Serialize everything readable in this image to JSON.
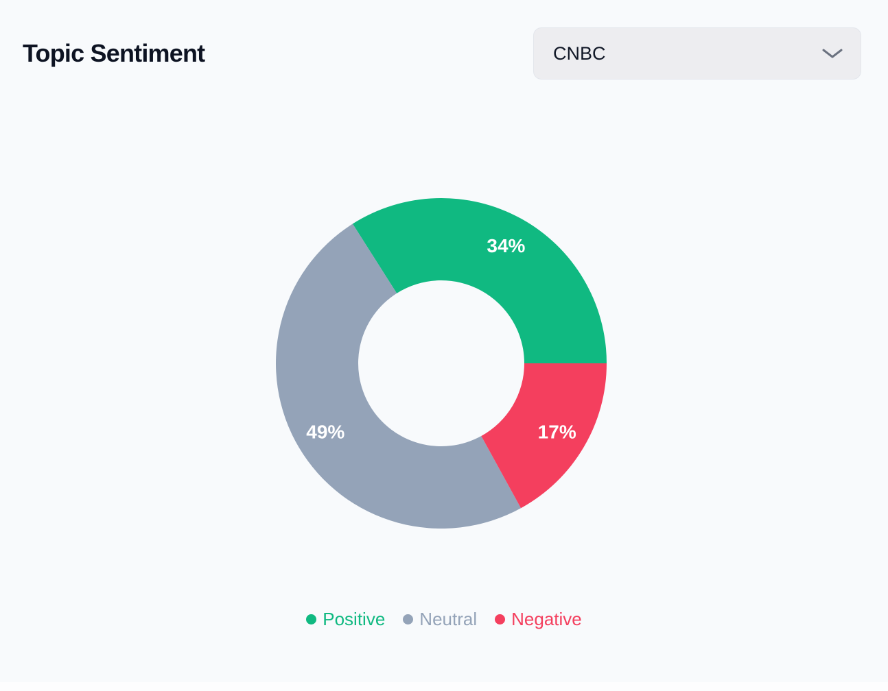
{
  "header": {
    "title": "Topic Sentiment",
    "source_select": {
      "value": "CNBC"
    }
  },
  "chart_data": {
    "type": "pie",
    "donut": true,
    "title": "Topic Sentiment",
    "categories": [
      "Positive",
      "Neutral",
      "Negative"
    ],
    "values": [
      34,
      49,
      17
    ],
    "unit": "%",
    "slice_labels": [
      "34%",
      "49%",
      "17%"
    ],
    "colors": [
      "#10b981",
      "#94a3b8",
      "#f43f5e"
    ],
    "start_angle_deg": 90,
    "direction": "counterclockwise",
    "inner_radius_ratio": 0.5,
    "legend_position": "bottom",
    "slice_label_color": "#ffffff"
  },
  "colors": {
    "page_background": "#f8fafc",
    "select_background": "#ededf0",
    "select_border": "#e3e6ec",
    "title_text": "#0d1322",
    "chevron": "#6b7280"
  }
}
